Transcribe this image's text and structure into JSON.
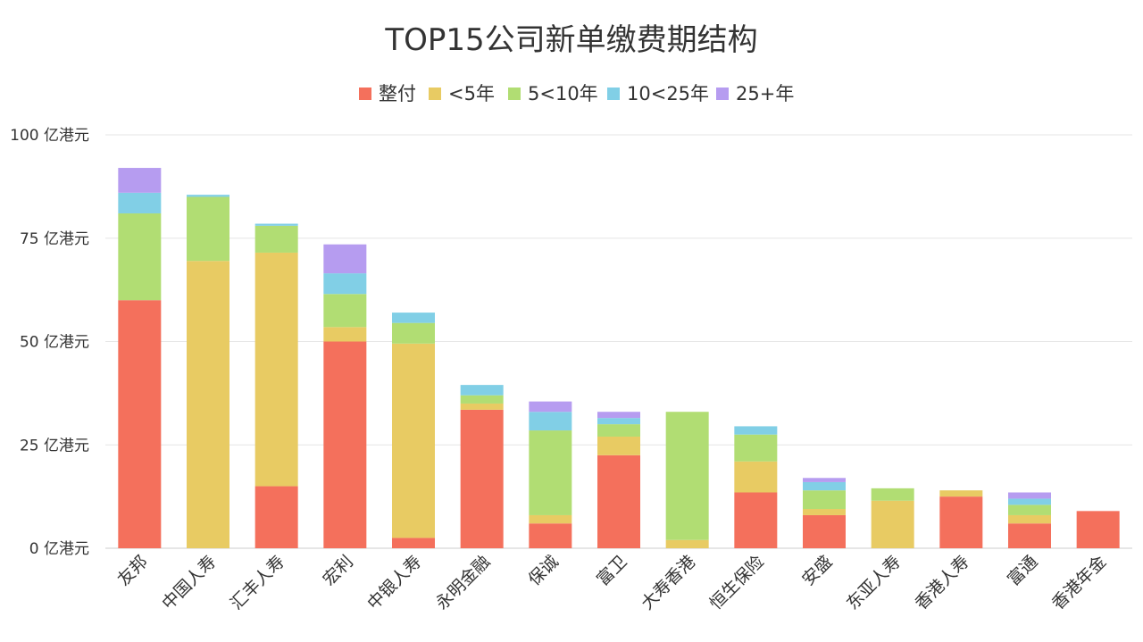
{
  "chart_data": {
    "type": "bar",
    "stacked": true,
    "title": "TOP15公司新单缴费期结构",
    "ylabel": "",
    "xlabel": "",
    "ylim": [
      0,
      100
    ],
    "yticks": [
      0,
      25,
      50,
      75,
      100
    ],
    "ytick_labels": [
      "0 亿港元",
      "25 亿港元",
      "50 亿港元",
      "75 亿港元",
      "100 亿港元"
    ],
    "grid": true,
    "legend_position": "top-center",
    "categories": [
      "友邦",
      "中国人寿",
      "汇丰人寿",
      "宏利",
      "中银人寿",
      "永明金融",
      "保诚",
      "富卫",
      "大寿香港",
      "恒生保险",
      "安盛",
      "东亚人寿",
      "香港人寿",
      "富通",
      "香港年金"
    ],
    "series": [
      {
        "name": "整付",
        "color": "#f4705c",
        "values": [
          60,
          0,
          15,
          50,
          2.5,
          33.5,
          6,
          22.5,
          0,
          13.5,
          8,
          0,
          12.5,
          6,
          9
        ]
      },
      {
        "name": "<5年",
        "color": "#e8cb63",
        "values": [
          0,
          69.5,
          56.5,
          3.5,
          47,
          1.5,
          2,
          4.5,
          2,
          7.5,
          1.5,
          11.5,
          1.5,
          2,
          0
        ]
      },
      {
        "name": "5<10年",
        "color": "#b1dd73",
        "values": [
          21,
          15.5,
          6.5,
          8,
          5,
          2,
          20.5,
          3,
          31,
          6.5,
          4.5,
          3,
          0,
          2.5,
          0
        ]
      },
      {
        "name": "10<25年",
        "color": "#81cfe6",
        "values": [
          5,
          0.5,
          0.5,
          5,
          2.5,
          2.5,
          4.5,
          1.5,
          0,
          2,
          2,
          0,
          0,
          1.5,
          0
        ]
      },
      {
        "name": "25+年",
        "color": "#b69cf0",
        "values": [
          6,
          0,
          0,
          7,
          0,
          0,
          2.5,
          1.5,
          0,
          0,
          1,
          0,
          0,
          1.5,
          0
        ]
      }
    ]
  }
}
